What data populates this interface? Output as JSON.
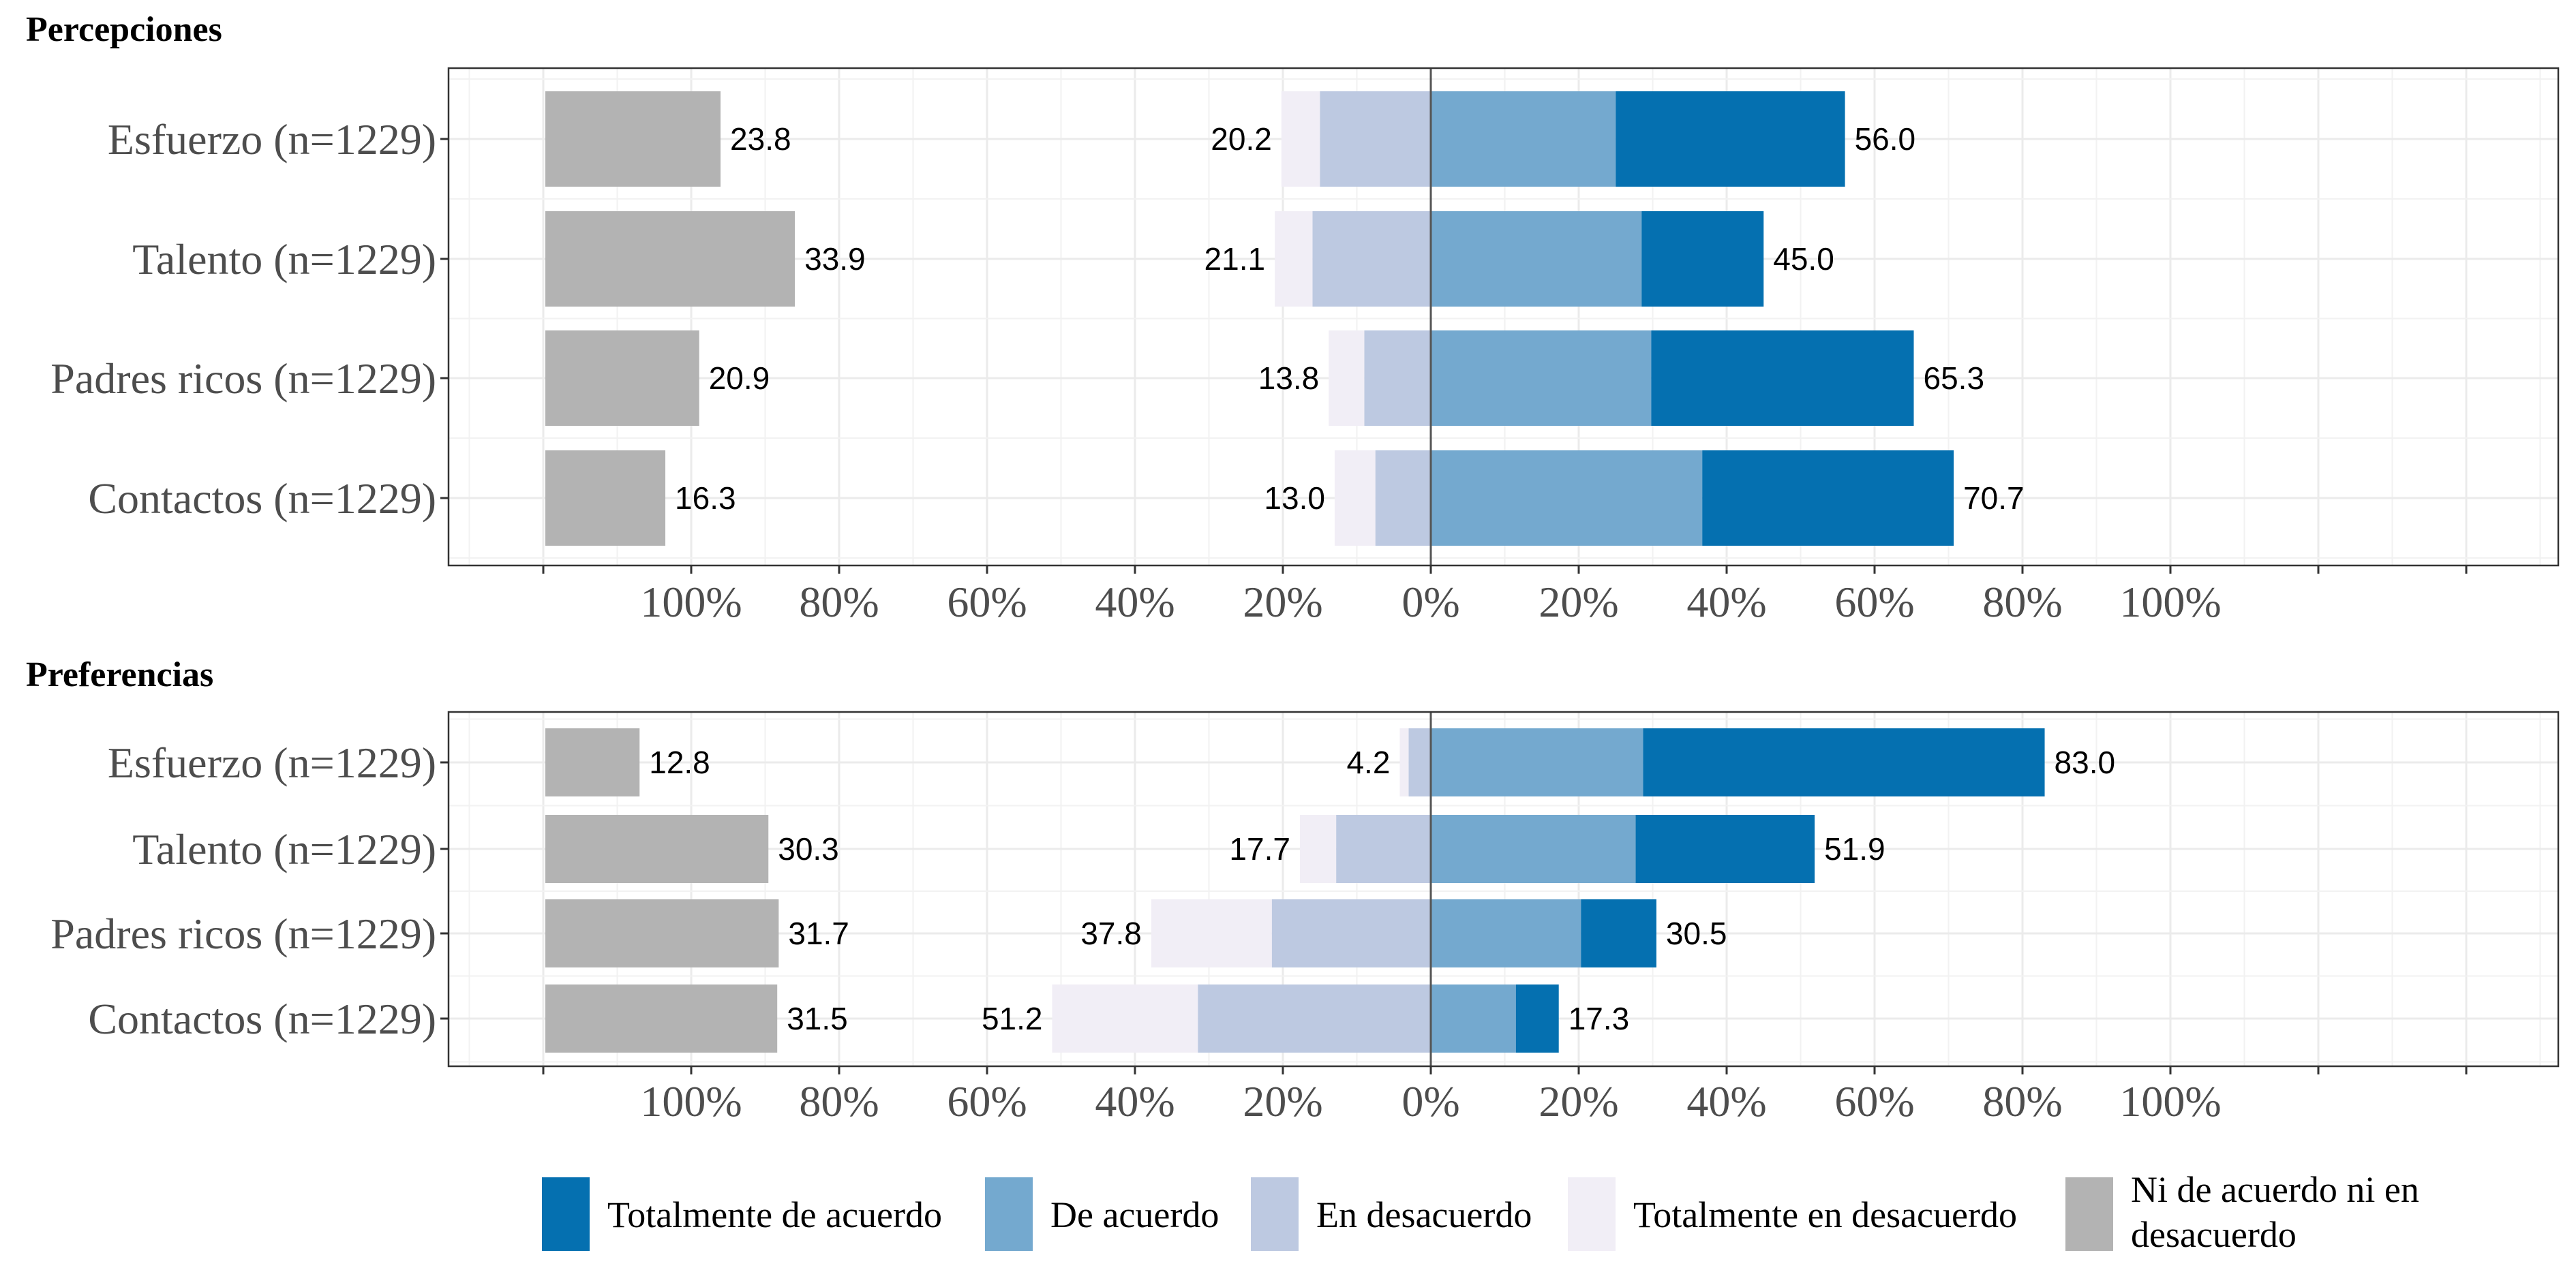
{
  "colors": {
    "totalmente_de_acuerdo": "#0570b0",
    "de_acuerdo": "#74a9cf",
    "en_desacuerdo": "#bdc9e1",
    "totalmente_en_desacuerdo": "#f1eef6",
    "neutral": "#b3b3b3"
  },
  "legend": [
    {
      "key": "totalmente_de_acuerdo",
      "label": "Totalmente de acuerdo"
    },
    {
      "key": "de_acuerdo",
      "label": "De acuerdo"
    },
    {
      "key": "en_desacuerdo",
      "label": "En desacuerdo"
    },
    {
      "key": "totalmente_en_desacuerdo",
      "label": "Totalmente en desacuerdo"
    },
    {
      "key": "neutral",
      "label": "Ni de acuerdo ni en desacuerdo",
      "lines": [
        "Ni de acuerdo ni en",
        "desacuerdo"
      ]
    }
  ],
  "chart_data": [
    {
      "type": "bar",
      "subtype": "diverging-stacked-likert",
      "title": "Percepciones",
      "xlim": [
        -120,
        140
      ],
      "x_ticks": [
        -100,
        -80,
        -60,
        -40,
        -20,
        0,
        20,
        40,
        60,
        80,
        100
      ],
      "tick_labels": [
        "100%",
        "80%",
        "60%",
        "40%",
        "20%",
        "0%",
        "20%",
        "40%",
        "60%",
        "80%",
        "100%"
      ],
      "grid": true,
      "categories": [
        "Esfuerzo (n=1229)",
        "Talento (n=1229)",
        "Padres ricos (n=1229)",
        "Contactos (n=1229)"
      ],
      "series": [
        {
          "key": "totalmente_de_acuerdo",
          "name": "Totalmente de acuerdo",
          "values": [
            31.0,
            16.5,
            35.5,
            34.0
          ]
        },
        {
          "key": "de_acuerdo",
          "name": "De acuerdo",
          "values": [
            25.0,
            28.5,
            29.8,
            36.7
          ]
        },
        {
          "key": "en_desacuerdo",
          "name": "En desacuerdo",
          "values": [
            15.0,
            16.0,
            9.0,
            7.5
          ]
        },
        {
          "key": "totalmente_en_desacuerdo",
          "name": "Totalmente en desacuerdo",
          "values": [
            5.2,
            5.1,
            4.8,
            5.5
          ]
        },
        {
          "key": "neutral",
          "name": "Ni de acuerdo ni en desacuerdo",
          "values": [
            23.8,
            33.9,
            20.9,
            16.3
          ]
        }
      ],
      "agree_labels": [
        "56.0",
        "45.0",
        "65.3",
        "70.7"
      ],
      "disagree_labels": [
        "20.2",
        "21.1",
        "13.8",
        "13.0"
      ],
      "neutral_labels": [
        "23.8",
        "33.9",
        "20.9",
        "16.3"
      ]
    },
    {
      "type": "bar",
      "subtype": "diverging-stacked-likert",
      "title": "Preferencias",
      "xlim": [
        -120,
        140
      ],
      "x_ticks": [
        -100,
        -80,
        -60,
        -40,
        -20,
        0,
        20,
        40,
        60,
        80,
        100
      ],
      "tick_labels": [
        "100%",
        "80%",
        "60%",
        "40%",
        "20%",
        "0%",
        "20%",
        "40%",
        "60%",
        "80%",
        "100%"
      ],
      "grid": true,
      "categories": [
        "Esfuerzo (n=1229)",
        "Talento (n=1229)",
        "Padres ricos (n=1229)",
        "Contactos (n=1229)"
      ],
      "series": [
        {
          "key": "totalmente_de_acuerdo",
          "name": "Totalmente de acuerdo",
          "values": [
            54.3,
            24.2,
            10.2,
            5.8
          ]
        },
        {
          "key": "de_acuerdo",
          "name": "De acuerdo",
          "values": [
            28.7,
            27.7,
            20.3,
            11.5
          ]
        },
        {
          "key": "en_desacuerdo",
          "name": "En desacuerdo",
          "values": [
            3.0,
            12.8,
            21.5,
            31.5
          ]
        },
        {
          "key": "totalmente_en_desacuerdo",
          "name": "Totalmente en desacuerdo",
          "values": [
            1.2,
            4.9,
            16.3,
            19.7
          ]
        },
        {
          "key": "neutral",
          "name": "Ni de acuerdo ni en desacuerdo",
          "values": [
            12.8,
            30.3,
            31.7,
            31.5
          ]
        }
      ],
      "agree_labels": [
        "83.0",
        "51.9",
        "30.5",
        "17.3"
      ],
      "disagree_labels": [
        "4.2",
        "17.7",
        "37.8",
        "51.2"
      ],
      "neutral_labels": [
        "12.8",
        "30.3",
        "31.7",
        "31.5"
      ]
    }
  ]
}
